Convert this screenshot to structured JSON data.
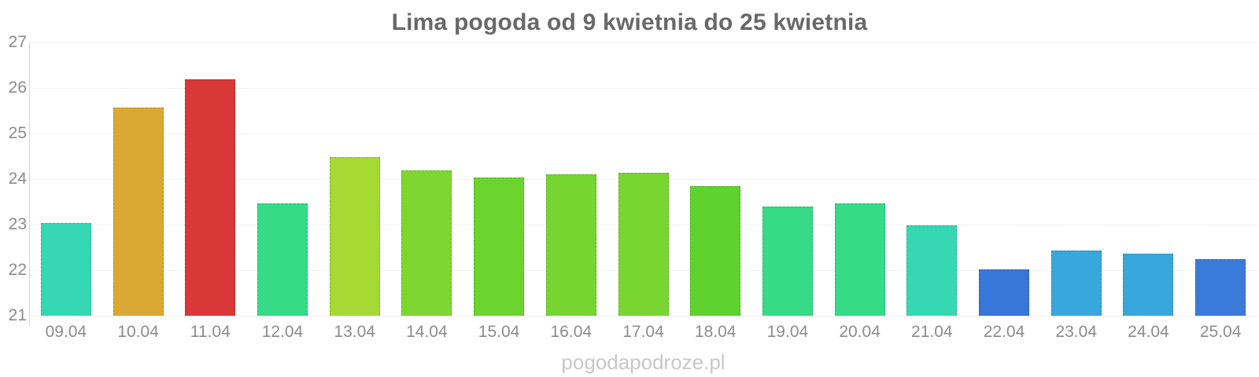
{
  "title": "Lima pogoda od 9 kwietnia do 25 kwietnia",
  "watermark": "pogodapodroze.pl",
  "chart_data": {
    "type": "bar",
    "title": "Lima pogoda od 9 kwietnia do 25 kwietnia",
    "categories": [
      "09.04",
      "10.04",
      "11.04",
      "12.04",
      "13.04",
      "14.04",
      "15.04",
      "16.04",
      "17.04",
      "18.04",
      "19.04",
      "20.04",
      "21.04",
      "22.04",
      "23.04",
      "24.04",
      "25.04"
    ],
    "values": [
      23.03,
      25.57,
      26.19,
      23.46,
      24.48,
      24.19,
      24.04,
      24.11,
      24.13,
      23.84,
      23.4,
      23.46,
      22.98,
      22.01,
      22.43,
      22.37,
      22.25
    ],
    "bar_colors": [
      "#36d8b4",
      "#d9a933",
      "#d93838",
      "#36db88",
      "#a6d933",
      "#7ed630",
      "#6cd42e",
      "#76d530",
      "#79d530",
      "#5ed22d",
      "#36db88",
      "#36db88",
      "#36d8b4",
      "#3876d8",
      "#38a8dc",
      "#38a8dc",
      "#3a7bd9"
    ],
    "xlabel": "",
    "ylabel": "",
    "ylim": [
      21,
      27
    ],
    "yticks": [
      21,
      22,
      23,
      24,
      25,
      26,
      27
    ],
    "grid": "horizontal-dotted",
    "legend": "none"
  },
  "colors": {
    "background": "#ffffff",
    "title_text": "#686868",
    "axis_text": "#8c8c8c",
    "grid_line": "#e4e4e4",
    "axis_line": "#d4d4d4",
    "watermark_text": "#c8c8c8"
  }
}
